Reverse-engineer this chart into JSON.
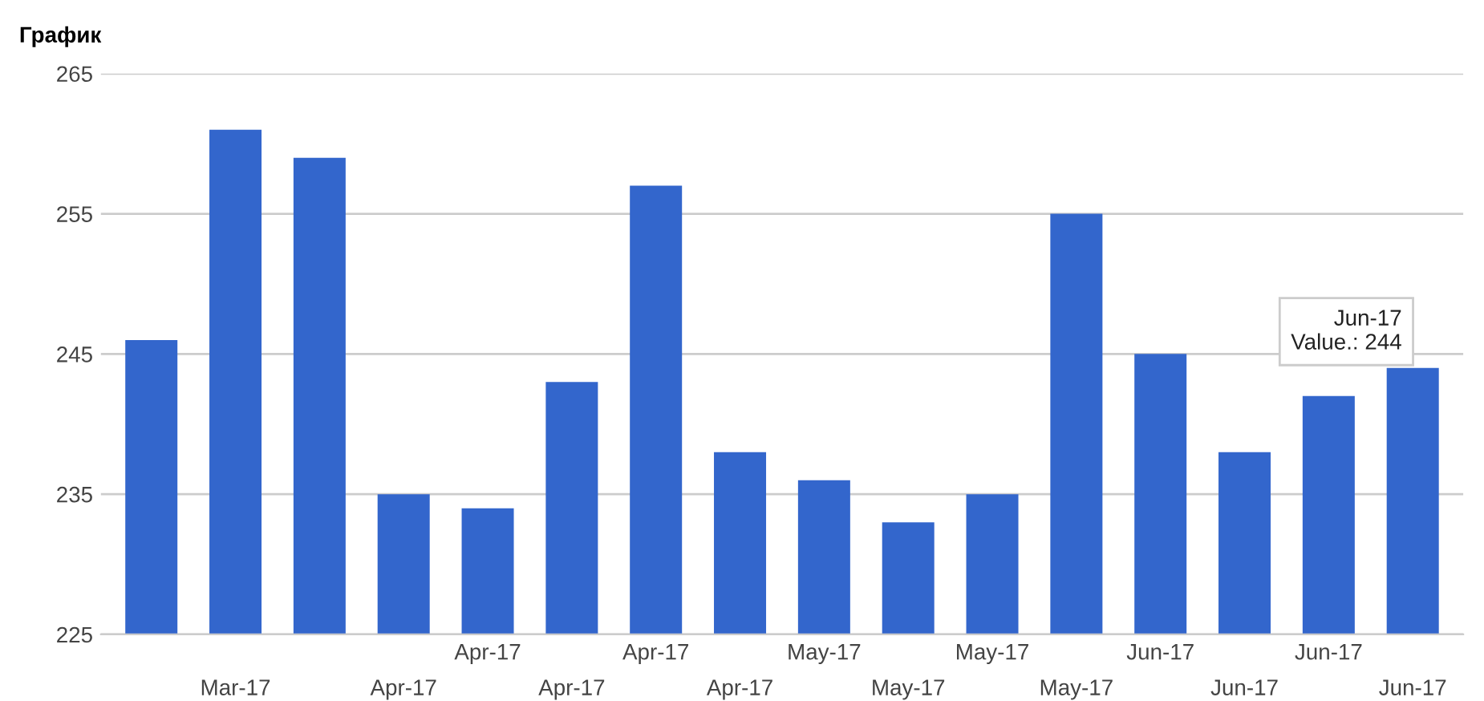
{
  "chart_data": {
    "type": "bar",
    "title": "График",
    "categories": [
      null,
      "Mar-17",
      null,
      "Apr-17",
      "Apr-17",
      "Apr-17",
      "Apr-17",
      "Apr-17",
      "May-17",
      "May-17",
      "May-17",
      "May-17",
      "Jun-17",
      "Jun-17",
      "Jun-17",
      "Jun-17"
    ],
    "values": [
      246,
      261,
      259,
      235,
      234,
      243,
      257,
      238,
      236,
      233,
      235,
      255,
      245,
      238,
      242,
      244
    ],
    "color": "#3366cc",
    "ylim": [
      225,
      265
    ],
    "yticks": [
      225,
      235,
      245,
      255,
      265
    ],
    "grid": "y",
    "annotations": [
      "Jun-17\nValue.: 244"
    ]
  }
}
